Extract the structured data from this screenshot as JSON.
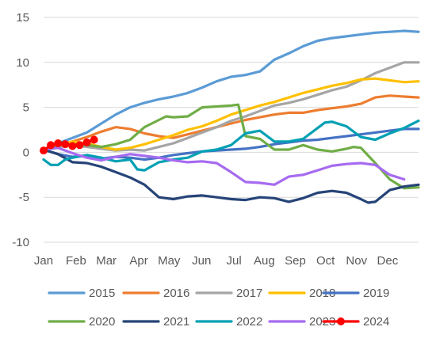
{
  "chart_data": {
    "type": "line",
    "title": "",
    "xlabel": "",
    "ylabel": "",
    "ylim": [
      -10,
      15
    ],
    "xlim": [
      0,
      52
    ],
    "grid": "horizontal",
    "legend_position": "bottom",
    "y_ticks": [
      "15",
      "10",
      "5",
      "0",
      "-5",
      "-10"
    ],
    "x_ticks": [
      {
        "label": "Jan",
        "x": 0
      },
      {
        "label": "Feb",
        "x": 4.5
      },
      {
        "label": "Mar",
        "x": 8.7
      },
      {
        "label": "Apr",
        "x": 13.2
      },
      {
        "label": "May",
        "x": 17.4
      },
      {
        "label": "Jun",
        "x": 21.9
      },
      {
        "label": "Jul",
        "x": 26.4
      },
      {
        "label": "Aug",
        "x": 30.6
      },
      {
        "label": "Sep",
        "x": 34.9
      },
      {
        "label": "Oct",
        "x": 39.1
      },
      {
        "label": "Nov",
        "x": 43.4
      },
      {
        "label": "Dec",
        "x": 47.7
      }
    ],
    "series": [
      {
        "name": "2015",
        "color": "#5B9BD5",
        "x": [
          0,
          2,
          4,
          6,
          8,
          10,
          12,
          14,
          16,
          18,
          20,
          22,
          24,
          26,
          28,
          30,
          32,
          34,
          36,
          38,
          40,
          42,
          44,
          46,
          48,
          50,
          52
        ],
        "y": [
          0.3,
          1.0,
          1.6,
          2.2,
          3.2,
          4.2,
          5.0,
          5.5,
          5.9,
          6.2,
          6.6,
          7.2,
          7.9,
          8.4,
          8.6,
          9.0,
          10.3,
          11.0,
          11.8,
          12.4,
          12.7,
          12.9,
          13.1,
          13.3,
          13.4,
          13.5,
          13.4
        ]
      },
      {
        "name": "2016",
        "color": "#ED7D31",
        "x": [
          0,
          2,
          4,
          6,
          8,
          10,
          12,
          14,
          16,
          18,
          20,
          22,
          24,
          26,
          28,
          30,
          32,
          34,
          36,
          38,
          40,
          42,
          44,
          46,
          48,
          50,
          52
        ],
        "y": [
          0.3,
          0.8,
          1.2,
          1.7,
          2.3,
          2.8,
          2.6,
          2.1,
          1.8,
          1.6,
          2.0,
          2.4,
          2.8,
          3.2,
          3.6,
          3.9,
          4.2,
          4.4,
          4.4,
          4.7,
          4.9,
          5.1,
          5.4,
          6.1,
          6.3,
          6.2,
          6.1
        ]
      },
      {
        "name": "2017",
        "color": "#A5A5A5",
        "x": [
          0,
          2,
          4,
          6,
          8,
          10,
          12,
          14,
          16,
          18,
          20,
          22,
          24,
          26,
          28,
          30,
          32,
          34,
          36,
          38,
          40,
          42,
          44,
          46,
          48,
          50,
          52
        ],
        "y": [
          0.3,
          0.6,
          0.8,
          0.6,
          0.4,
          0.2,
          0.3,
          0.2,
          0.6,
          1.0,
          1.6,
          2.2,
          2.8,
          3.5,
          4.0,
          4.6,
          5.2,
          5.5,
          5.9,
          6.4,
          6.9,
          7.3,
          8.0,
          8.8,
          9.4,
          10.0,
          10.0
        ]
      },
      {
        "name": "2018",
        "color": "#FFC000",
        "x": [
          0,
          2,
          4,
          6,
          8,
          10,
          12,
          14,
          16,
          18,
          20,
          22,
          24,
          26,
          28,
          30,
          32,
          34,
          36,
          38,
          40,
          42,
          44,
          46,
          48,
          50,
          52
        ],
        "y": [
          0.3,
          0.7,
          1.2,
          1.0,
          0.6,
          0.3,
          0.5,
          0.9,
          1.4,
          1.9,
          2.5,
          2.9,
          3.5,
          4.2,
          4.7,
          5.2,
          5.6,
          6.1,
          6.6,
          7.0,
          7.4,
          7.7,
          8.1,
          8.2,
          8.0,
          7.8,
          7.9
        ]
      },
      {
        "name": "2019",
        "color": "#4472C4",
        "x": [
          0,
          2,
          4,
          6,
          8,
          10,
          12,
          14,
          16,
          18,
          20,
          22,
          24,
          26,
          28,
          30,
          32,
          34,
          36,
          38,
          40,
          42,
          44,
          46,
          48,
          50,
          52
        ],
        "y": [
          0.3,
          -0.2,
          -0.5,
          -0.4,
          -0.7,
          -0.5,
          -0.6,
          -0.8,
          -0.6,
          -0.3,
          -0.1,
          0.1,
          0.2,
          0.3,
          0.4,
          0.6,
          0.9,
          1.1,
          1.3,
          1.4,
          1.6,
          1.8,
          2.0,
          2.2,
          2.4,
          2.6,
          2.6
        ]
      },
      {
        "name": "2020",
        "color": "#70AD47",
        "x": [
          0,
          2,
          4,
          6,
          8,
          10,
          12,
          14,
          16,
          17,
          18,
          20,
          22,
          24,
          26,
          27,
          28,
          30,
          32,
          34,
          36,
          38,
          40,
          42,
          43,
          44,
          46,
          48,
          50,
          52
        ],
        "y": [
          0.3,
          0.8,
          0.9,
          0.8,
          0.6,
          0.9,
          1.4,
          2.8,
          3.6,
          4.0,
          3.9,
          4.0,
          5.0,
          5.1,
          5.2,
          5.3,
          1.8,
          1.5,
          0.3,
          0.3,
          0.8,
          0.3,
          0.1,
          0.4,
          0.6,
          0.5,
          -1.2,
          -3.0,
          -4.0,
          -3.9
        ]
      },
      {
        "name": "2021",
        "color": "#264478",
        "x": [
          0,
          2,
          4,
          6,
          8,
          10,
          12,
          14,
          16,
          18,
          20,
          22,
          24,
          26,
          28,
          30,
          32,
          34,
          36,
          38,
          40,
          42,
          44,
          45,
          46,
          48,
          50,
          52
        ],
        "y": [
          0.3,
          -0.2,
          -1.1,
          -1.2,
          -1.6,
          -2.2,
          -2.8,
          -3.6,
          -5.0,
          -5.2,
          -4.9,
          -4.8,
          -5.0,
          -5.2,
          -5.3,
          -5.0,
          -5.1,
          -5.5,
          -5.1,
          -4.5,
          -4.3,
          -4.5,
          -5.2,
          -5.6,
          -5.5,
          -4.2,
          -3.8,
          -3.6
        ]
      },
      {
        "name": "2022",
        "color": "#00A0B4",
        "x": [
          0,
          1,
          2,
          3,
          4,
          6,
          8,
          10,
          12,
          13,
          14,
          16,
          18,
          20,
          22,
          24,
          26,
          28,
          30,
          32,
          34,
          36,
          38,
          39,
          40,
          42,
          44,
          46,
          48,
          50,
          52
        ],
        "y": [
          -0.8,
          -1.4,
          -1.4,
          -0.8,
          -0.6,
          -0.3,
          -0.6,
          -1.0,
          -0.8,
          -1.9,
          -2.0,
          -1.1,
          -0.8,
          -0.6,
          0.1,
          0.3,
          0.8,
          2.1,
          2.4,
          1.2,
          1.2,
          1.5,
          2.7,
          3.3,
          3.4,
          2.9,
          1.7,
          1.4,
          2.1,
          2.7,
          3.5
        ]
      },
      {
        "name": "2023",
        "color": "#A66BF0",
        "x": [
          0,
          2,
          4,
          6,
          8,
          10,
          12,
          14,
          16,
          18,
          20,
          22,
          24,
          26,
          28,
          30,
          32,
          34,
          36,
          38,
          40,
          42,
          44,
          46,
          48,
          50
        ],
        "y": [
          0.3,
          0.5,
          -0.1,
          -0.6,
          -0.9,
          -0.5,
          -0.2,
          -0.4,
          -0.6,
          -0.9,
          -1.1,
          -1.0,
          -1.2,
          -2.2,
          -3.3,
          -3.4,
          -3.6,
          -2.7,
          -2.5,
          -2.0,
          -1.5,
          -1.3,
          -1.2,
          -1.4,
          -2.5,
          -3.0
        ]
      },
      {
        "name": "2024",
        "color": "#FF0000",
        "x": [
          0,
          1,
          2,
          3,
          4,
          5,
          6,
          7
        ],
        "y": [
          0.2,
          0.8,
          1.0,
          0.9,
          0.7,
          0.8,
          1.1,
          1.4
        ]
      }
    ]
  }
}
